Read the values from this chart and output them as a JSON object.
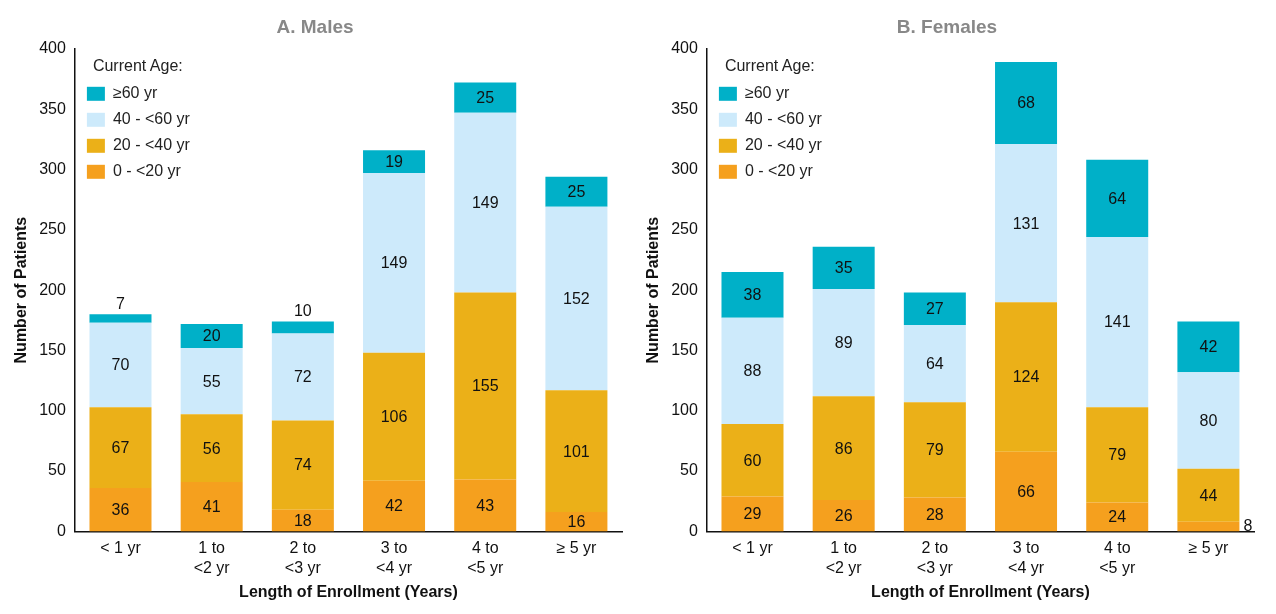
{
  "chart_data": [
    {
      "type": "bar",
      "title": "A. Males",
      "xlabel": "Length of Enrollment (Years)",
      "ylabel": "Number of Patients",
      "legend_title": "Current Age:",
      "categories": [
        "< 1 yr",
        "1 to\n<2 yr",
        "2 to\n<3 yr",
        "3 to\n<4 yr",
        "4 to\n<5 yr",
        "≥ 5 yr"
      ],
      "series": [
        {
          "name": "0 - <20 yr",
          "color": "#f5a01e",
          "values": [
            36,
            41,
            18,
            42,
            43,
            16
          ]
        },
        {
          "name": "20 - <40 yr",
          "color": "#ebb018",
          "values": [
            67,
            56,
            74,
            106,
            155,
            101
          ]
        },
        {
          "name": "40 - <60 yr",
          "color": "#cdeafb",
          "values": [
            70,
            55,
            72,
            149,
            149,
            152
          ]
        },
        {
          "name": "≥60 yr",
          "color": "#00b0c8",
          "values": [
            7,
            20,
            10,
            19,
            25,
            25
          ]
        }
      ],
      "stacked": true,
      "ylim": [
        0,
        400
      ],
      "yticks": [
        0,
        50,
        100,
        150,
        200,
        250,
        300,
        350,
        400
      ],
      "grid": false,
      "legend": "top left",
      "data_labels": true
    },
    {
      "type": "bar",
      "title": "B. Females",
      "xlabel": "Length of Enrollment (Years)",
      "ylabel": "Number of Patients",
      "legend_title": "Current Age:",
      "categories": [
        "< 1 yr",
        "1 to\n<2 yr",
        "2 to\n<3 yr",
        "3 to\n<4 yr",
        "4 to\n<5 yr",
        "≥ 5 yr"
      ],
      "series": [
        {
          "name": "0 - <20 yr",
          "color": "#f5a01e",
          "values": [
            29,
            26,
            28,
            66,
            24,
            8
          ]
        },
        {
          "name": "20 - <40 yr",
          "color": "#ebb018",
          "values": [
            60,
            86,
            79,
            124,
            79,
            44
          ]
        },
        {
          "name": "40 - <60 yr",
          "color": "#cdeafb",
          "values": [
            88,
            89,
            64,
            131,
            141,
            80
          ]
        },
        {
          "name": "≥60 yr",
          "color": "#00b0c8",
          "values": [
            38,
            35,
            27,
            68,
            64,
            42
          ]
        }
      ],
      "stacked": true,
      "ylim": [
        0,
        400
      ],
      "yticks": [
        0,
        50,
        100,
        150,
        200,
        250,
        300,
        350,
        400
      ],
      "grid": false,
      "legend": "top left",
      "data_labels": true
    }
  ]
}
